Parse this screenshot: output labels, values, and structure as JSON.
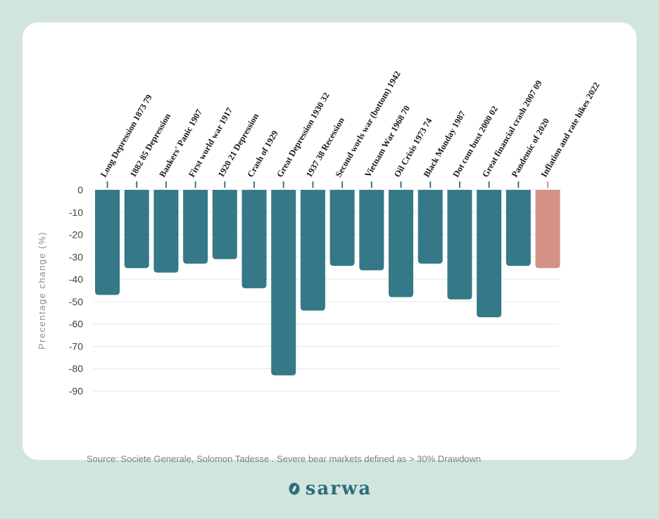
{
  "chart_data": {
    "type": "bar",
    "categories": [
      "Long Depression 1873 79",
      "1882 85 Depression",
      "Bankers' Panic 1907",
      "First world war 1917",
      "1920 21 Depression",
      "Crash of 1929",
      "Great Depression 1930 32",
      "1937 38 Recession",
      "Second worls war (bottom) 1942",
      "Vietnam War 1968 70",
      "Oil Crisis 1973 74",
      "Black Monday 1987",
      "Dot com bust 2000 02",
      "Great financial crash 2007 09",
      "Pandemic of 2020",
      "Inflation and rate hikes 2022"
    ],
    "values": [
      -47,
      -35,
      -37,
      -33,
      -31,
      -44,
      -83,
      -54,
      -34,
      -36,
      -48,
      -33,
      -49,
      -57,
      -34,
      -35
    ],
    "highlight_index": 15,
    "title": "",
    "xlabel": "",
    "ylabel": "Precentage change  (%)",
    "ylim": [
      -90,
      0
    ],
    "yticks": [
      0,
      -10,
      -20,
      -30,
      -40,
      -50,
      -60,
      -70,
      -80,
      -90
    ],
    "grid": true,
    "colors": {
      "bar": "#357887",
      "highlight": "#d39285",
      "grid": "#e6e6e6",
      "tick": "#404040"
    }
  },
  "source": "Source: Societe Generale, Solomon Tadesse . Severe bear markets defined as > 30% Drawdown",
  "brand": {
    "name": "sarwa",
    "icon": "sarwa-logo-icon",
    "color": "#2b6e7a"
  },
  "background": "#d2e5dd"
}
